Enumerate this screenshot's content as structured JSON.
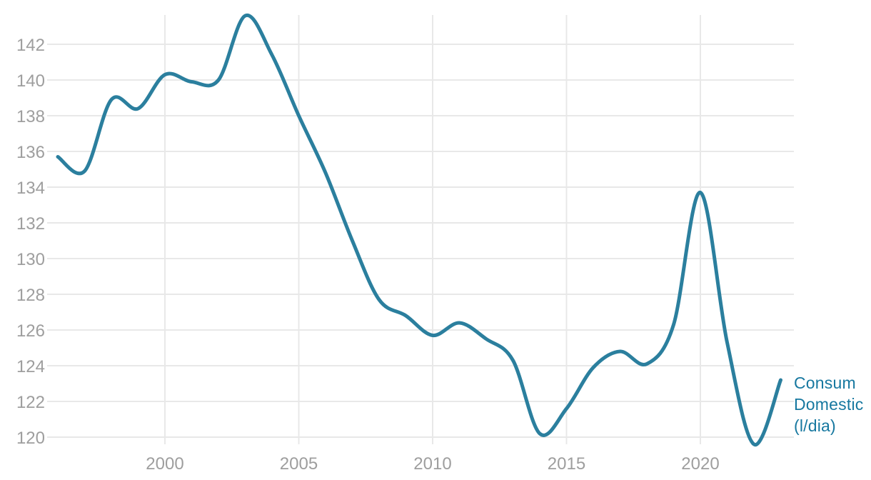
{
  "chart": {
    "series_label_lines": [
      "Consum",
      "Domestic",
      "(l/dia)"
    ]
  },
  "chart_data": {
    "type": "line",
    "title": "",
    "xlabel": "",
    "ylabel": "",
    "x": [
      1996,
      1997,
      1998,
      1999,
      2000,
      2001,
      2002,
      2003,
      2004,
      2005,
      2006,
      2007,
      2008,
      2009,
      2010,
      2011,
      2012,
      2013,
      2014,
      2015,
      2016,
      2017,
      2018,
      2019,
      2020,
      2021,
      2022,
      2023
    ],
    "series": [
      {
        "name": "Consum Domestic (l/dia)",
        "values": [
          135.7,
          134.9,
          138.9,
          138.4,
          140.3,
          139.9,
          140.0,
          143.6,
          141.4,
          138.0,
          134.8,
          131.0,
          127.7,
          126.8,
          125.7,
          126.4,
          125.5,
          124.3,
          120.2,
          121.6,
          123.9,
          124.8,
          124.1,
          126.3,
          133.7,
          125.3,
          119.6,
          123.2
        ]
      }
    ],
    "x_ticks": [
      2000,
      2005,
      2010,
      2015,
      2020
    ],
    "y_ticks": [
      120,
      122,
      124,
      126,
      128,
      130,
      132,
      134,
      136,
      138,
      140,
      142
    ],
    "xlim": [
      1996,
      2023
    ],
    "ylim": [
      119.5,
      143.7
    ],
    "grid": true,
    "smooth": true,
    "legend_position": "end-of-line-right",
    "colors": {
      "line": "#2b7f9e",
      "series_label": "#1778a0",
      "grid": "#e8e8e8",
      "tick_label": "#9e9e9e",
      "background": "#ffffff"
    }
  }
}
